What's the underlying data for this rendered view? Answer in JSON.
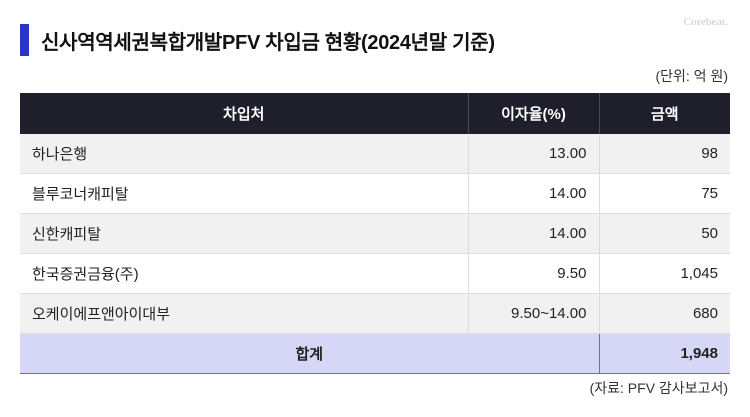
{
  "watermark": "Corebeat.",
  "title": "신사역역세권복합개발PFV 차입금 현황(2024년말 기준)",
  "unit": "(단위: 억 원)",
  "table": {
    "headers": [
      "차입처",
      "이자율(%)",
      "금액"
    ],
    "rows": [
      {
        "lender": "하나은행",
        "rate": "13.00",
        "amount": "98"
      },
      {
        "lender": "블루코너캐피탈",
        "rate": "14.00",
        "amount": "75"
      },
      {
        "lender": "신한캐피탈",
        "rate": "14.00",
        "amount": "50"
      },
      {
        "lender": "한국증권금융(주)",
        "rate": "9.50",
        "amount": "1,045"
      },
      {
        "lender": "오케이에프앤아이대부",
        "rate": "9.50~14.00",
        "amount": "680"
      }
    ],
    "total_label": "합계",
    "total_value": "1,948"
  },
  "source": "(자료: PFV 감사보고서)",
  "colors": {
    "accent": "#2a35c9",
    "header_bg": "#1f1f2b",
    "total_bg": "#d6d6f7"
  }
}
